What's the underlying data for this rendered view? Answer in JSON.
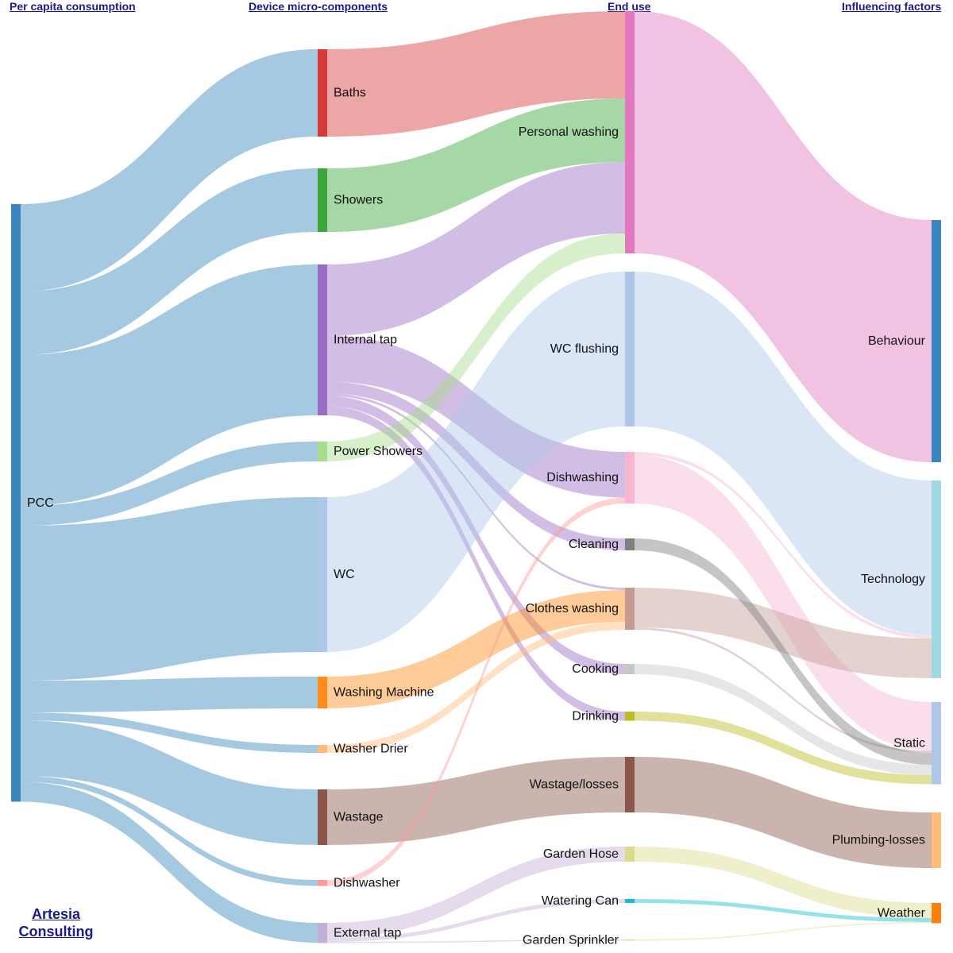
{
  "headers": {
    "col1": "Per capita consumption",
    "col2": "Device micro-components",
    "col3": "End use",
    "col4": "Influencing factors"
  },
  "brand": {
    "line1": "Artesia",
    "line2": "Consulting"
  },
  "nodes": [
    {
      "id": "pcc",
      "label": "PCC",
      "color": "#3a87bf"
    },
    {
      "id": "baths",
      "label": "Baths",
      "color": "#d63a3a"
    },
    {
      "id": "showers",
      "label": "Showers",
      "color": "#3aa63a"
    },
    {
      "id": "internal_tap",
      "label": "Internal tap",
      "color": "#9b6cc4"
    },
    {
      "id": "power_showers",
      "label": "Power Showers",
      "color": "#a6dc8a"
    },
    {
      "id": "wc",
      "label": "WC",
      "color": "#aec7e8"
    },
    {
      "id": "washing_machine",
      "label": "Washing Machine",
      "color": "#ff8c1a"
    },
    {
      "id": "washer_drier",
      "label": "Washer Drier",
      "color": "#ffbb78"
    },
    {
      "id": "wastage",
      "label": "Wastage",
      "color": "#8c564b"
    },
    {
      "id": "dishwasher",
      "label": "Dishwasher",
      "color": "#ff9896"
    },
    {
      "id": "external_tap",
      "label": "External tap",
      "color": "#c5b0d5"
    },
    {
      "id": "personal_washing",
      "label": "Personal washing",
      "color": "#e377c2"
    },
    {
      "id": "wc_flushing",
      "label": "WC flushing",
      "color": "#aec7e8"
    },
    {
      "id": "dishwashing",
      "label": "Dishwashing",
      "color": "#f7b6d2"
    },
    {
      "id": "cleaning",
      "label": "Cleaning",
      "color": "#7f7f7f"
    },
    {
      "id": "clothes_washing",
      "label": "Clothes washing",
      "color": "#c49c94"
    },
    {
      "id": "cooking",
      "label": "Cooking",
      "color": "#c7c7c7"
    },
    {
      "id": "drinking",
      "label": "Drinking",
      "color": "#bcbd22"
    },
    {
      "id": "wastage_losses",
      "label": "Wastage/losses",
      "color": "#8c564b"
    },
    {
      "id": "garden_hose",
      "label": "Garden Hose",
      "color": "#dbdb8d"
    },
    {
      "id": "watering_can",
      "label": "Watering Can",
      "color": "#17becf"
    },
    {
      "id": "garden_sprinkler",
      "label": "Garden Sprinkler",
      "color": "#dbdb8d"
    },
    {
      "id": "behaviour",
      "label": "Behaviour",
      "color": "#3a87bf"
    },
    {
      "id": "technology",
      "label": "Technology",
      "color": "#9edae5"
    },
    {
      "id": "static",
      "label": "Static",
      "color": "#aec7e8"
    },
    {
      "id": "plumbing_losses",
      "label": "Plumbing-losses",
      "color": "#ffbb78"
    },
    {
      "id": "weather",
      "label": "Weather",
      "color": "#ff7f0e"
    }
  ],
  "links": [
    {
      "source": "pcc",
      "target": "baths",
      "value": 22
    },
    {
      "source": "pcc",
      "target": "showers",
      "value": 16
    },
    {
      "source": "pcc",
      "target": "internal_tap",
      "value": 38
    },
    {
      "source": "pcc",
      "target": "power_showers",
      "value": 5
    },
    {
      "source": "pcc",
      "target": "wc",
      "value": 39
    },
    {
      "source": "pcc",
      "target": "washing_machine",
      "value": 8
    },
    {
      "source": "pcc",
      "target": "washer_drier",
      "value": 2
    },
    {
      "source": "pcc",
      "target": "wastage",
      "value": 14
    },
    {
      "source": "pcc",
      "target": "dishwasher",
      "value": 1.5
    },
    {
      "source": "pcc",
      "target": "external_tap",
      "value": 5
    },
    {
      "source": "baths",
      "target": "personal_washing",
      "value": 22
    },
    {
      "source": "showers",
      "target": "personal_washing",
      "value": 16
    },
    {
      "source": "internal_tap",
      "target": "personal_washing",
      "value": 18
    },
    {
      "source": "internal_tap",
      "target": "dishwashing",
      "value": 11.5
    },
    {
      "source": "internal_tap",
      "target": "cleaning",
      "value": 3
    },
    {
      "source": "internal_tap",
      "target": "clothes_washing",
      "value": 0.6
    },
    {
      "source": "internal_tap",
      "target": "cooking",
      "value": 2.6
    },
    {
      "source": "internal_tap",
      "target": "drinking",
      "value": 2.3
    },
    {
      "source": "power_showers",
      "target": "personal_washing",
      "value": 5
    },
    {
      "source": "wc",
      "target": "wc_flushing",
      "value": 39
    },
    {
      "source": "washing_machine",
      "target": "clothes_washing",
      "value": 8
    },
    {
      "source": "washer_drier",
      "target": "clothes_washing",
      "value": 2
    },
    {
      "source": "wastage",
      "target": "wastage_losses",
      "value": 14
    },
    {
      "source": "dishwasher",
      "target": "dishwashing",
      "value": 1.5
    },
    {
      "source": "external_tap",
      "target": "garden_hose",
      "value": 3.8
    },
    {
      "source": "external_tap",
      "target": "watering_can",
      "value": 1
    },
    {
      "source": "external_tap",
      "target": "garden_sprinkler",
      "value": 0.3
    },
    {
      "source": "personal_washing",
      "target": "behaviour",
      "value": 61
    },
    {
      "source": "wc_flushing",
      "target": "technology",
      "value": 39
    },
    {
      "source": "dishwashing",
      "target": "technology",
      "value": 0.8
    },
    {
      "source": "dishwashing",
      "target": "static",
      "value": 12.2
    },
    {
      "source": "clothes_washing",
      "target": "technology",
      "value": 10
    },
    {
      "source": "clothes_washing",
      "target": "static",
      "value": 0.6
    },
    {
      "source": "cleaning",
      "target": "static",
      "value": 3
    },
    {
      "source": "cooking",
      "target": "static",
      "value": 2.6
    },
    {
      "source": "drinking",
      "target": "static",
      "value": 2.3
    },
    {
      "source": "wastage_losses",
      "target": "plumbing_losses",
      "value": 14
    },
    {
      "source": "garden_hose",
      "target": "weather",
      "value": 3.8
    },
    {
      "source": "watering_can",
      "target": "weather",
      "value": 1
    },
    {
      "source": "garden_sprinkler",
      "target": "weather",
      "value": 0.3
    }
  ]
}
